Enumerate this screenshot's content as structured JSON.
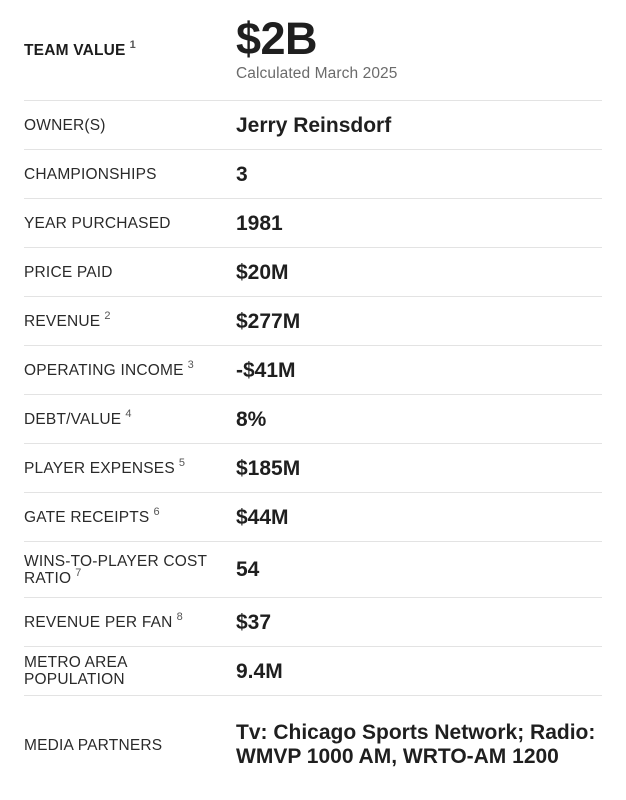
{
  "team_value": {
    "label": "TEAM VALUE",
    "footnote": "1",
    "value": "$2B",
    "calculated": "Calculated March 2025"
  },
  "rows": [
    {
      "label": "OWNER(S)",
      "footnote": "",
      "value": "Jerry Reinsdorf"
    },
    {
      "label": "CHAMPIONSHIPS",
      "footnote": "",
      "value": "3"
    },
    {
      "label": "YEAR PURCHASED",
      "footnote": "",
      "value": "1981"
    },
    {
      "label": "PRICE PAID",
      "footnote": "",
      "value": "$20M"
    },
    {
      "label": "REVENUE",
      "footnote": "2",
      "value": "$277M"
    },
    {
      "label": "OPERATING INCOME",
      "footnote": "3",
      "value": "-$41M"
    },
    {
      "label": "DEBT/VALUE",
      "footnote": "4",
      "value": "8%"
    },
    {
      "label": "PLAYER EXPENSES",
      "footnote": "5",
      "value": "$185M"
    },
    {
      "label": "GATE RECEIPTS",
      "footnote": "6",
      "value": "$44M"
    },
    {
      "label": "WINS-TO-PLAYER COST RATIO",
      "footnote": "7",
      "value": "54"
    },
    {
      "label": "REVENUE PER FAN",
      "footnote": "8",
      "value": "$37"
    },
    {
      "label": "METRO AREA POPULATION",
      "footnote": "",
      "value": "9.4M"
    },
    {
      "label": "MEDIA PARTNERS",
      "footnote": "",
      "value": "Tv: Chicago Sports Network; Radio: WMVP 1000 AM, WRTO-AM 1200"
    }
  ]
}
